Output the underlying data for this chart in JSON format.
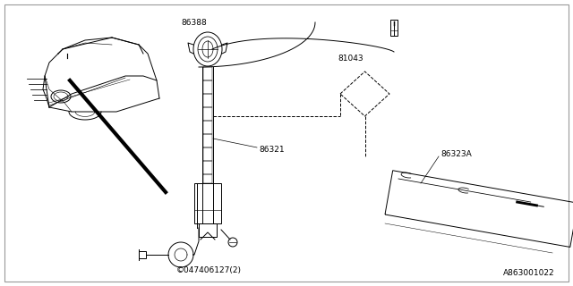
{
  "background_color": "#ffffff",
  "fig_width": 6.4,
  "fig_height": 3.2,
  "dpi": 100,
  "labels": {
    "part_81043": "81043",
    "part_86388": "86388",
    "part_86321": "86321",
    "part_86323A": "86323A",
    "part_047": "©047406127(2)",
    "diagram_id": "A863001022"
  },
  "line_color": "#000000",
  "text_color": "#000000",
  "label_fontsize": 6.5,
  "diagram_id_fontsize": 6.5
}
